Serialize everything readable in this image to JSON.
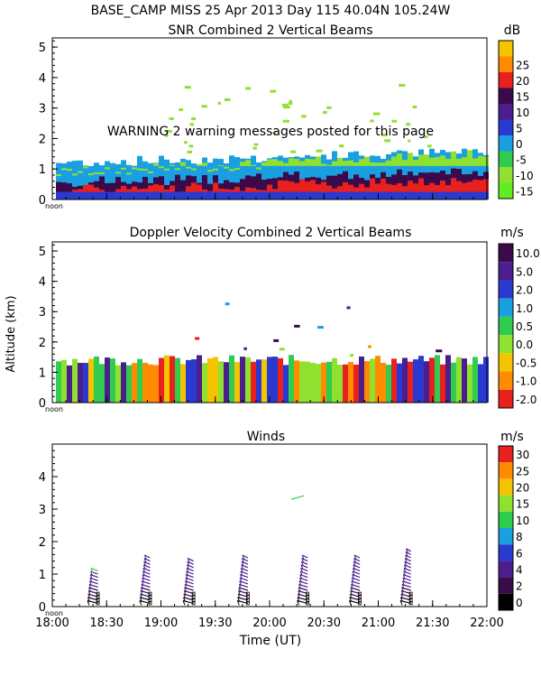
{
  "header": {
    "station_line": "BASE_CAMP MISS  25 Apr 2013 Day 115 40.04N 105.24W"
  },
  "common": {
    "xaxis_label": "Time (UT)",
    "yaxis_label": "Altitude (km)",
    "x_ticks": [
      "18:00",
      "18:30",
      "19:00",
      "19:30",
      "20:00",
      "20:30",
      "21:00",
      "21:30",
      "22:00"
    ],
    "x_range": [
      18.0,
      22.0
    ],
    "noon_label": "noon"
  },
  "chart_data": [
    {
      "type": "heatmap",
      "title": "SNR Combined 2 Vertical Beams",
      "unit": "dB",
      "ylim": [
        0,
        5.3
      ],
      "y_ticks": [
        "0",
        "1",
        "2",
        "3",
        "4",
        "5"
      ],
      "y_tick_values": [
        0,
        1,
        2,
        3,
        4,
        5
      ],
      "warning": "WARNING  2 warning messages posted for this page",
      "colorbar": {
        "labels": [
          "25",
          "20",
          "15",
          "10",
          "5",
          "0",
          "-5",
          "-10",
          "-15"
        ],
        "colors": [
          "#f5c400",
          "#ff8c00",
          "#e8201e",
          "#3a0a4a",
          "#4b1e8c",
          "#2a3ad0",
          "#1aa0e0",
          "#30cc50",
          "#90e030",
          "#60ee20"
        ]
      },
      "layers": [
        {
          "name": "near-surface high SNR",
          "top_km": 0.3,
          "color": "#e8201e"
        },
        {
          "name": "mid SNR",
          "top_km": 0.55,
          "color": "#3a0a4a"
        },
        {
          "name": "low SNR",
          "top_km": 1.2,
          "color": "#1aa0e0"
        }
      ]
    },
    {
      "type": "heatmap",
      "title": "Doppler Velocity Combined 2 Vertical Beams",
      "unit": "m/s",
      "ylim": [
        0,
        5.3
      ],
      "y_ticks": [
        "0",
        "1",
        "2",
        "3",
        "4",
        "5"
      ],
      "y_tick_values": [
        0,
        1,
        2,
        3,
        4,
        5
      ],
      "colorbar": {
        "labels": [
          "10.0",
          "5.0",
          "2.0",
          "1.0",
          "0.5",
          "0.0",
          "-0.5",
          "-1.0",
          "-2.0"
        ],
        "colors": [
          "#3a0a4a",
          "#4b1e8c",
          "#2a3ad0",
          "#1aa0e0",
          "#30cc50",
          "#90e030",
          "#f5c400",
          "#ff8c00",
          "#e8201e"
        ]
      },
      "layers": [
        {
          "name": "boundary layer velocities",
          "top_km": 1.4,
          "color": "#f5c400"
        }
      ]
    },
    {
      "type": "scatter",
      "title": "Winds",
      "unit": "m/s",
      "ylim": [
        0,
        5.0
      ],
      "y_ticks": [
        "0",
        "1",
        "2",
        "3",
        "4"
      ],
      "y_tick_values": [
        0,
        1,
        2,
        3,
        4
      ],
      "colorbar": {
        "labels": [
          "30",
          "25",
          "20",
          "15",
          "10",
          "8",
          "6",
          "4",
          "2",
          "0"
        ],
        "colors": [
          "#e8201e",
          "#ff8c00",
          "#f5c400",
          "#90e030",
          "#30cc50",
          "#1aa0e0",
          "#2a3ad0",
          "#4b1e8c",
          "#3a0a4a",
          "#000000"
        ]
      },
      "profile_times": [
        18.42,
        18.9,
        19.3,
        19.8,
        20.35,
        20.83,
        21.3
      ],
      "profile_top_km": [
        1.1,
        1.6,
        1.5,
        1.6,
        1.6,
        1.6,
        1.8
      ],
      "upper_barbs": [
        {
          "time": 20.2,
          "alt_km": 3.3,
          "color": "#30cc50"
        }
      ]
    }
  ]
}
